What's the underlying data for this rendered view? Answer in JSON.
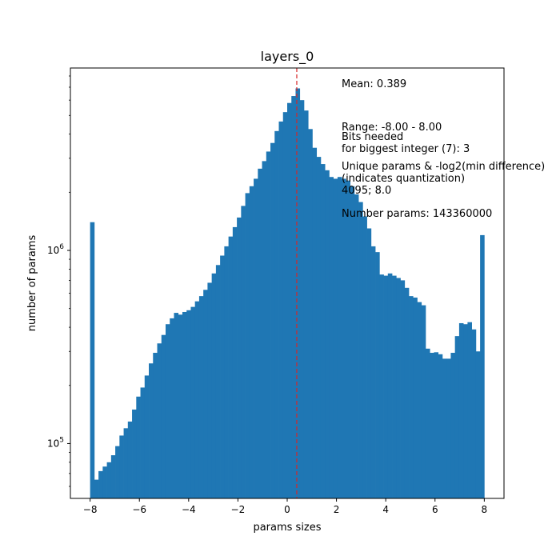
{
  "chart_data": {
    "type": "bar",
    "title": "layers_0",
    "xlabel": "params sizes",
    "ylabel": "number of params",
    "y_scale": "log",
    "xlim": [
      -8.8,
      8.8
    ],
    "ylim": [
      52000,
      8800000
    ],
    "grid": false,
    "colors": {
      "bars": "#1f77b4",
      "mean_line": "#d62728"
    },
    "x_ticks": [
      {
        "value": -8,
        "label": "−8"
      },
      {
        "value": -6,
        "label": "−6"
      },
      {
        "value": -4,
        "label": "−4"
      },
      {
        "value": -2,
        "label": "−2"
      },
      {
        "value": 0,
        "label": "0"
      },
      {
        "value": 2,
        "label": "2"
      },
      {
        "value": 4,
        "label": "4"
      },
      {
        "value": 6,
        "label": "6"
      },
      {
        "value": 8,
        "label": "8"
      }
    ],
    "y_ticks": [
      {
        "value": 100000,
        "base": "10",
        "exp": "5"
      },
      {
        "value": 1000000,
        "base": "10",
        "exp": "6"
      }
    ],
    "bin_range": [
      -8.0,
      8.0
    ],
    "bin_counts": [
      1400000,
      65000,
      72000,
      76000,
      80000,
      87000,
      97000,
      110000,
      120000,
      130000,
      150000,
      175000,
      195000,
      225000,
      260000,
      295000,
      330000,
      365000,
      415000,
      445000,
      475000,
      465000,
      480000,
      490000,
      510000,
      545000,
      580000,
      625000,
      680000,
      760000,
      840000,
      940000,
      1050000,
      1180000,
      1320000,
      1480000,
      1700000,
      1980000,
      2150000,
      2350000,
      2650000,
      2900000,
      3250000,
      3600000,
      4150000,
      4650000,
      5200000,
      5800000,
      6300000,
      6900000,
      6000000,
      5300000,
      4250000,
      3400000,
      3050000,
      2800000,
      2600000,
      2400000,
      2350000,
      2400000,
      2350000,
      2300000,
      2150000,
      1950000,
      1780000,
      1500000,
      1300000,
      1050000,
      980000,
      750000,
      740000,
      760000,
      740000,
      720000,
      700000,
      640000,
      580000,
      570000,
      540000,
      520000,
      310000,
      295000,
      297000,
      290000,
      275000,
      275000,
      295000,
      360000,
      420000,
      415000,
      425000,
      390000,
      300000,
      1200000
    ],
    "mean_line_x": 0.389,
    "annotations": {
      "mean": "Mean: 0.389",
      "range": "Range: -8.00 - 8.00",
      "bits": "Bits needed\nfor biggest integer (7): 3",
      "unique": "Unique params & -log2(min difference)\n(indicates quantization)\n4095; 8.0",
      "number": "Number params: 143360000"
    }
  }
}
